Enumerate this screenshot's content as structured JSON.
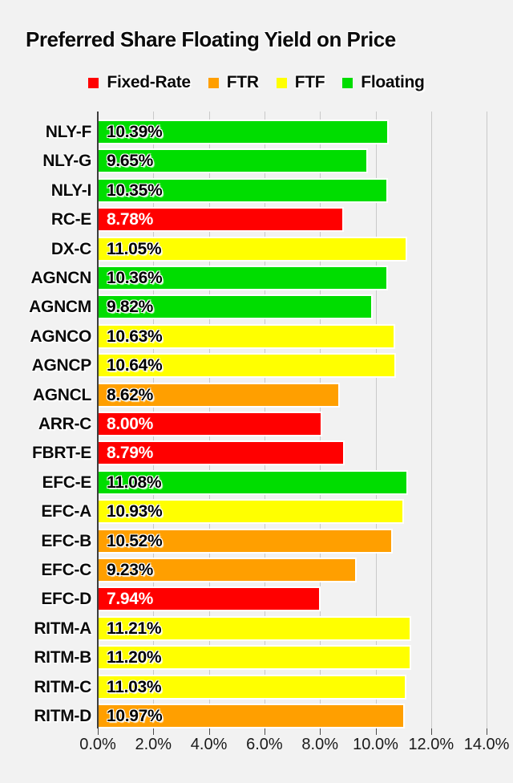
{
  "page": {
    "background_color": "#f2f2f2",
    "gridline_color": "#c9c9c9",
    "axis_color": "#3c3c3c",
    "text_color": "#0b0b0b"
  },
  "chart_data": {
    "type": "bar",
    "orientation": "horizontal",
    "title": "Preferred Share Floating Yield on Price",
    "xlabel": "",
    "ylabel": "",
    "xlim": [
      0,
      14
    ],
    "grid": true,
    "legend_position": "top",
    "legend": [
      {
        "key": "fixed_rate",
        "label": "Fixed-Rate",
        "color": "#ff0000",
        "value_text_color": "#ffffff"
      },
      {
        "key": "ftr",
        "label": "FTR",
        "color": "#ff9f00",
        "value_text_color": "#000000"
      },
      {
        "key": "ftf",
        "label": "FTF",
        "color": "#ffff00",
        "value_text_color": "#000000"
      },
      {
        "key": "floating",
        "label": "Floating",
        "color": "#00dd00",
        "value_text_color": "#000000"
      }
    ],
    "x_ticks": [
      {
        "value": 0,
        "label": "0.0%"
      },
      {
        "value": 2,
        "label": "2.0%"
      },
      {
        "value": 4,
        "label": "4.0%"
      },
      {
        "value": 6,
        "label": "6.0%"
      },
      {
        "value": 8,
        "label": "8.0%"
      },
      {
        "value": 10,
        "label": "10.0%"
      },
      {
        "value": 12,
        "label": "12.0%"
      },
      {
        "value": 14,
        "label": "14.0%"
      }
    ],
    "bars": [
      {
        "category": "NLY-F",
        "value": 10.39,
        "display": "10.39%",
        "group": "floating"
      },
      {
        "category": "NLY-G",
        "value": 9.65,
        "display": "9.65%",
        "group": "floating"
      },
      {
        "category": "NLY-I",
        "value": 10.35,
        "display": "10.35%",
        "group": "floating"
      },
      {
        "category": "RC-E",
        "value": 8.78,
        "display": "8.78%",
        "group": "fixed_rate"
      },
      {
        "category": "DX-C",
        "value": 11.05,
        "display": "11.05%",
        "group": "ftf"
      },
      {
        "category": "AGNCN",
        "value": 10.36,
        "display": "10.36%",
        "group": "floating"
      },
      {
        "category": "AGNCM",
        "value": 9.82,
        "display": "9.82%",
        "group": "floating"
      },
      {
        "category": "AGNCO",
        "value": 10.63,
        "display": "10.63%",
        "group": "ftf"
      },
      {
        "category": "AGNCP",
        "value": 10.64,
        "display": "10.64%",
        "group": "ftf"
      },
      {
        "category": "AGNCL",
        "value": 8.62,
        "display": "8.62%",
        "group": "ftr"
      },
      {
        "category": "ARR-C",
        "value": 8.0,
        "display": "8.00%",
        "group": "fixed_rate"
      },
      {
        "category": "FBRT-E",
        "value": 8.79,
        "display": "8.79%",
        "group": "fixed_rate"
      },
      {
        "category": "EFC-E",
        "value": 11.08,
        "display": "11.08%",
        "group": "floating"
      },
      {
        "category": "EFC-A",
        "value": 10.93,
        "display": "10.93%",
        "group": "ftf"
      },
      {
        "category": "EFC-B",
        "value": 10.52,
        "display": "10.52%",
        "group": "ftr"
      },
      {
        "category": "EFC-C",
        "value": 9.23,
        "display": "9.23%",
        "group": "ftr"
      },
      {
        "category": "EFC-D",
        "value": 7.94,
        "display": "7.94%",
        "group": "fixed_rate"
      },
      {
        "category": "RITM-A",
        "value": 11.21,
        "display": "11.21%",
        "group": "ftf"
      },
      {
        "category": "RITM-B",
        "value": 11.2,
        "display": "11.20%",
        "group": "ftf"
      },
      {
        "category": "RITM-C",
        "value": 11.03,
        "display": "11.03%",
        "group": "ftf"
      },
      {
        "category": "RITM-D",
        "value": 10.97,
        "display": "10.97%",
        "group": "ftr"
      }
    ]
  }
}
